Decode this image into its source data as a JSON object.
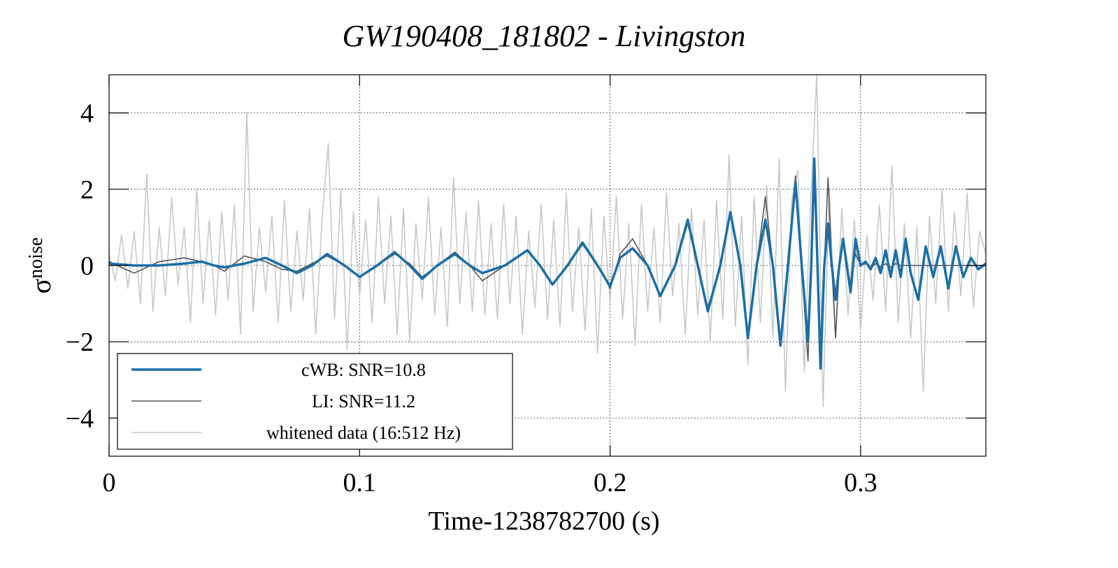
{
  "chart_data": {
    "type": "line",
    "title": "GW190408_181802 - Livingston",
    "x_label": "Time-1238782700 (s)",
    "y_label": "σ",
    "y_label_subscript": "noise",
    "xlim": [
      0,
      0.35
    ],
    "ylim": [
      -5,
      5
    ],
    "xticks": [
      0,
      0.1,
      0.2,
      0.3
    ],
    "yticks": [
      {
        "value": -4,
        "label": "−4"
      },
      {
        "value": -2,
        "label": "−2"
      },
      0,
      2,
      4
    ],
    "grid": true,
    "legend": "lower left",
    "series": [
      {
        "name": "whitened data (16:512 Hz)",
        "color": "#c8c8c8",
        "x": [
          0,
          0.0025,
          0.005,
          0.0075,
          0.01,
          0.0125,
          0.015,
          0.0175,
          0.02,
          0.0225,
          0.025,
          0.0275,
          0.03,
          0.0325,
          0.035,
          0.0375,
          0.04,
          0.0425,
          0.045,
          0.0475,
          0.05,
          0.0525,
          0.055,
          0.0575,
          0.06,
          0.0625,
          0.065,
          0.0675,
          0.07,
          0.0725,
          0.075,
          0.0775,
          0.08,
          0.0825,
          0.085,
          0.0875,
          0.09,
          0.0925,
          0.095,
          0.0975,
          0.1,
          0.1025,
          0.105,
          0.1075,
          0.11,
          0.1125,
          0.115,
          0.1175,
          0.12,
          0.1225,
          0.125,
          0.1275,
          0.13,
          0.1325,
          0.135,
          0.1375,
          0.14,
          0.1425,
          0.145,
          0.1475,
          0.15,
          0.1525,
          0.155,
          0.1575,
          0.16,
          0.1625,
          0.165,
          0.1675,
          0.17,
          0.1725,
          0.175,
          0.1775,
          0.18,
          0.1825,
          0.185,
          0.1875,
          0.19,
          0.1925,
          0.195,
          0.1975,
          0.2,
          0.2025,
          0.205,
          0.2075,
          0.21,
          0.2125,
          0.215,
          0.2175,
          0.22,
          0.2225,
          0.225,
          0.2275,
          0.23,
          0.2325,
          0.235,
          0.2375,
          0.24,
          0.2425,
          0.245,
          0.2475,
          0.25,
          0.2525,
          0.255,
          0.2575,
          0.26,
          0.2625,
          0.265,
          0.2675,
          0.27,
          0.2725,
          0.275,
          0.2775,
          0.28,
          0.2825,
          0.285,
          0.2875,
          0.29,
          0.2925,
          0.295,
          0.2975,
          0.3,
          0.3025,
          0.305,
          0.3075,
          0.31,
          0.3125,
          0.315,
          0.3175,
          0.32,
          0.3225,
          0.325,
          0.3275,
          0.33,
          0.3325,
          0.335,
          0.3375,
          0.34,
          0.3425,
          0.345,
          0.3475,
          0.35
        ],
        "values": [
          0.3,
          -0.4,
          0.8,
          -0.6,
          0.9,
          -1.0,
          2.4,
          -1.2,
          1.0,
          -0.8,
          1.8,
          -0.5,
          1.0,
          -1.5,
          2.0,
          -1.0,
          1.2,
          -1.3,
          1.4,
          -0.9,
          1.6,
          -1.8,
          4.0,
          -1.2,
          1.0,
          -0.7,
          1.3,
          -1.5,
          1.7,
          -1.2,
          0.9,
          -0.9,
          1.5,
          -1.8,
          1.2,
          3.2,
          -1.4,
          2.0,
          -2.2,
          1.4,
          -0.8,
          1.2,
          -1.5,
          1.8,
          -1.0,
          1.3,
          -1.8,
          1.5,
          -2.0,
          1.1,
          -0.9,
          1.8,
          -1.3,
          1.0,
          -1.6,
          2.3,
          -1.0,
          1.4,
          -1.2,
          1.7,
          -1.3,
          1.1,
          -1.4,
          1.6,
          -1.0,
          1.3,
          -1.8,
          0.9,
          -1.1,
          1.6,
          -1.4,
          1.2,
          -1.6,
          1.9,
          -1.2,
          1.0,
          -1.7,
          1.5,
          -2.3,
          1.3,
          -1.0,
          1.8,
          -1.4,
          1.1,
          -2.1,
          1.6,
          -1.2,
          1.0,
          -1.5,
          1.9,
          -0.8,
          1.1,
          -1.8,
          1.5,
          -1.3,
          1.2,
          -2.0,
          1.7,
          -1.4,
          2.9,
          -1.6,
          1.3,
          -2.6,
          1.8,
          -1.5,
          2.1,
          -1.9,
          2.8,
          -3.3,
          1.7,
          2.5,
          -2.8,
          1.6,
          5.0,
          -3.7,
          2.0,
          -1.9,
          1.5,
          -1.3,
          1.2,
          -1.7,
          0.8,
          -0.9,
          1.6,
          -1.2,
          2.6,
          -1.5,
          1.1,
          -1.9,
          1.0,
          -3.3,
          1.3,
          -1.0,
          2.0,
          -1.2,
          1.4,
          -0.8,
          1.9,
          -1.1,
          0.9,
          0.3
        ]
      },
      {
        "name": "LI: SNR=11.2",
        "color": "#555555",
        "x": [
          0,
          0.01,
          0.02,
          0.03,
          0.037,
          0.042,
          0.046,
          0.054,
          0.0625,
          0.069,
          0.075,
          0.081,
          0.087,
          0.094,
          0.1,
          0.107,
          0.114,
          0.12,
          0.125,
          0.131,
          0.138,
          0.144,
          0.149,
          0.158,
          0.167,
          0.172,
          0.177,
          0.183,
          0.189,
          0.195,
          0.2,
          0.204,
          0.209,
          0.215,
          0.22,
          0.226,
          0.231,
          0.235,
          0.239,
          0.244,
          0.248,
          0.252,
          0.255,
          0.2585,
          0.262,
          0.265,
          0.268,
          0.271,
          0.274,
          0.2765,
          0.279,
          0.2803,
          0.2815,
          0.2828,
          0.284,
          0.2855,
          0.287,
          0.2885,
          0.29,
          0.2915,
          0.293,
          0.2945,
          0.296,
          0.297,
          0.298,
          0.3,
          0.302,
          0.304,
          0.306,
          0.308,
          0.31,
          0.312,
          0.314,
          0.316,
          0.318,
          0.32,
          0.323,
          0.326,
          0.329,
          0.332,
          0.335,
          0.338,
          0.341,
          0.344,
          0.347,
          0.35
        ],
        "values": [
          0.1,
          -0.2,
          0.1,
          0.2,
          0.1,
          0,
          -0.15,
          0.25,
          0.1,
          -0.1,
          -0.15,
          0.05,
          0.25,
          0,
          -0.3,
          0,
          0.3,
          0.05,
          -0.3,
          0,
          0.35,
          0,
          -0.4,
          0,
          0.4,
          0,
          -0.5,
          0,
          0.55,
          0,
          -0.6,
          0.3,
          0.7,
          0,
          -0.8,
          0,
          1.1,
          0,
          -1.1,
          0,
          1.4,
          0,
          -1.8,
          0,
          1.8,
          0,
          -1.9,
          0,
          2.35,
          0,
          -2.5,
          0,
          2.6,
          0,
          -2.5,
          0,
          2.3,
          0,
          -1.9,
          0,
          0.6,
          0,
          -0.5,
          0,
          0.3,
          0,
          0.05,
          -0.05,
          0.05,
          -0.05,
          0.05,
          -0.05,
          0.05,
          0,
          0,
          0,
          0,
          0,
          0,
          0,
          0,
          0,
          0,
          0,
          0,
          0
        ]
      },
      {
        "name": "cWB: SNR=10.8",
        "color": "#1a6fa8",
        "x": [
          0,
          0.01,
          0.02,
          0.03,
          0.037,
          0.042,
          0.046,
          0.054,
          0.0625,
          0.069,
          0.075,
          0.081,
          0.087,
          0.094,
          0.1,
          0.107,
          0.114,
          0.12,
          0.125,
          0.131,
          0.138,
          0.144,
          0.149,
          0.158,
          0.167,
          0.172,
          0.177,
          0.183,
          0.189,
          0.195,
          0.2,
          0.204,
          0.209,
          0.215,
          0.22,
          0.226,
          0.231,
          0.235,
          0.239,
          0.244,
          0.248,
          0.252,
          0.255,
          0.2585,
          0.262,
          0.265,
          0.268,
          0.271,
          0.274,
          0.2765,
          0.279,
          0.2803,
          0.2815,
          0.2828,
          0.284,
          0.2855,
          0.287,
          0.2885,
          0.29,
          0.2915,
          0.293,
          0.2945,
          0.296,
          0.297,
          0.298,
          0.3,
          0.302,
          0.304,
          0.306,
          0.308,
          0.31,
          0.312,
          0.314,
          0.316,
          0.318,
          0.32,
          0.323,
          0.326,
          0.329,
          0.332,
          0.335,
          0.338,
          0.341,
          0.344,
          0.347,
          0.35
        ],
        "values": [
          0.05,
          0,
          0,
          0.05,
          0.1,
          0,
          -0.05,
          0.05,
          0.2,
          0,
          -0.2,
          0,
          0.3,
          0,
          -0.3,
          0,
          0.35,
          0,
          -0.35,
          0,
          0.3,
          0,
          -0.2,
          0,
          0.4,
          0,
          -0.5,
          0,
          0.6,
          0,
          -0.55,
          0.2,
          0.45,
          0,
          -0.8,
          0,
          1.2,
          0,
          -1.2,
          0,
          1.4,
          0,
          -1.9,
          0,
          1.2,
          0,
          -2.1,
          0,
          2.2,
          0,
          -2.0,
          0,
          2.8,
          0,
          -2.7,
          0,
          1.1,
          0,
          -0.9,
          0,
          0.7,
          0,
          -0.7,
          0,
          0.7,
          0,
          0.1,
          -0.1,
          0.2,
          -0.2,
          0.4,
          -0.3,
          0.4,
          -0.3,
          0.7,
          -0.2,
          -0.9,
          0.5,
          -0.3,
          0.5,
          -0.6,
          0.5,
          -0.3,
          0.2,
          -0.1,
          0.05
        ]
      }
    ]
  }
}
